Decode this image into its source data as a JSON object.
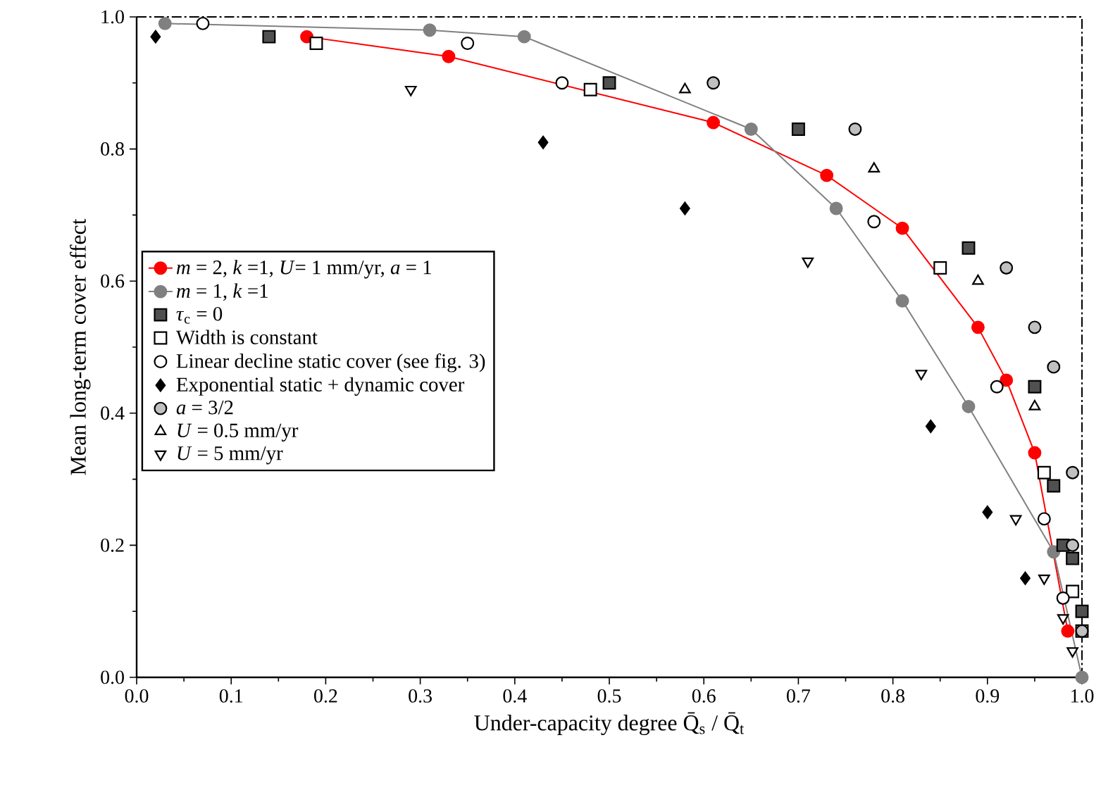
{
  "chart_data": {
    "type": "scatter",
    "xlabel": "Under-capacity degree Q̄$_{s}$ / Q̄$_{t}$",
    "ylabel": "Mean long-term cover effect",
    "xlim": [
      0,
      1
    ],
    "ylim": [
      0,
      1
    ],
    "xticks": [
      {
        "value": 0,
        "label": "0.0"
      },
      {
        "value": 0.1,
        "label": "0.1"
      },
      {
        "value": 0.2,
        "label": "0.2"
      },
      {
        "value": 0.3,
        "label": "0.3"
      },
      {
        "value": 0.4,
        "label": "0.4"
      },
      {
        "value": 0.5,
        "label": "0.5"
      },
      {
        "value": 0.6,
        "label": "0.6"
      },
      {
        "value": 0.7,
        "label": "0.7"
      },
      {
        "value": 0.8,
        "label": "0.8"
      },
      {
        "value": 0.9,
        "label": "0.9"
      },
      {
        "value": 1,
        "label": "1.0"
      }
    ],
    "yticks": [
      {
        "value": 0,
        "label": "0.0"
      },
      {
        "value": 0.2,
        "label": "0.2"
      },
      {
        "value": 0.4,
        "label": "0.4"
      },
      {
        "value": 0.6,
        "label": "0.6"
      },
      {
        "value": 0.8,
        "label": "0.8"
      },
      {
        "value": 1,
        "label": "1.0"
      }
    ],
    "legend": "left",
    "series": [
      {
        "name": "*m* = 2, *k* =1, *U*= 1 mm/yr, *a* = 1",
        "type": "line",
        "marker": "circle",
        "color": "#ff0000",
        "x": [
          0.18,
          0.33,
          0.61,
          0.73,
          0.81,
          0.89,
          0.92,
          0.95,
          0.985
        ],
        "values": [
          0.97,
          0.94,
          0.84,
          0.76,
          0.68,
          0.53,
          0.45,
          0.34,
          0.07
        ]
      },
      {
        "name": "*m* = 1, *k* =1",
        "type": "line",
        "marker": "circle",
        "color": "#808080",
        "x": [
          0.03,
          0.31,
          0.41,
          0.65,
          0.74,
          0.81,
          0.88,
          0.97,
          1.0
        ],
        "values": [
          0.99,
          0.98,
          0.97,
          0.83,
          0.71,
          0.57,
          0.41,
          0.19,
          0.0
        ]
      },
      {
        "name": "*τ*$_{c}$ = 0",
        "marker": "square",
        "color": "#505050",
        "x": [
          0.14,
          0.5,
          0.7,
          0.88,
          0.95,
          0.97,
          0.98,
          0.99,
          1.0
        ],
        "values": [
          0.97,
          0.9,
          0.83,
          0.65,
          0.44,
          0.29,
          0.2,
          0.18,
          0.1
        ]
      },
      {
        "name": "Width is constant",
        "marker": "square",
        "color": "#ffffff",
        "x": [
          0.19,
          0.48,
          0.85,
          0.96,
          0.99,
          1.0
        ],
        "values": [
          0.96,
          0.89,
          0.62,
          0.31,
          0.13,
          0.07
        ]
      },
      {
        "name": "Linear decline static cover (see fig. 3)",
        "marker": "circle",
        "color": "#ffffff",
        "x": [
          0.07,
          0.35,
          0.45,
          0.78,
          0.91,
          0.96,
          0.98
        ],
        "values": [
          0.99,
          0.96,
          0.9,
          0.69,
          0.44,
          0.24,
          0.12
        ]
      },
      {
        "name": "Exponential static  + dynamic cover",
        "marker": "diamond",
        "color": "#000000",
        "x": [
          0.02,
          0.43,
          0.58,
          0.84,
          0.9,
          0.94
        ],
        "values": [
          0.97,
          0.81,
          0.71,
          0.38,
          0.25,
          0.15
        ]
      },
      {
        "name": "*a* = 3/2",
        "marker": "circle",
        "color": "#c0c0c0",
        "x": [
          0.61,
          0.76,
          0.92,
          0.95,
          0.97,
          0.99,
          0.99,
          1.0
        ],
        "values": [
          0.9,
          0.83,
          0.62,
          0.53,
          0.47,
          0.31,
          0.2,
          0.07
        ]
      },
      {
        "name": "*U* = 0.5 mm/yr",
        "marker": "triangle",
        "color": "#ffffff",
        "x": [
          0.58,
          0.78,
          0.89,
          0.95
        ],
        "values": [
          0.89,
          0.77,
          0.6,
          0.41
        ]
      },
      {
        "name": "*U* = 5 mm/yr",
        "marker": "triangle_down",
        "color": "#ffffff",
        "x": [
          0.29,
          0.71,
          0.83,
          0.93,
          0.96,
          0.98,
          0.99
        ],
        "values": [
          0.89,
          0.63,
          0.46,
          0.24,
          0.15,
          0.09,
          0.04
        ]
      }
    ]
  }
}
